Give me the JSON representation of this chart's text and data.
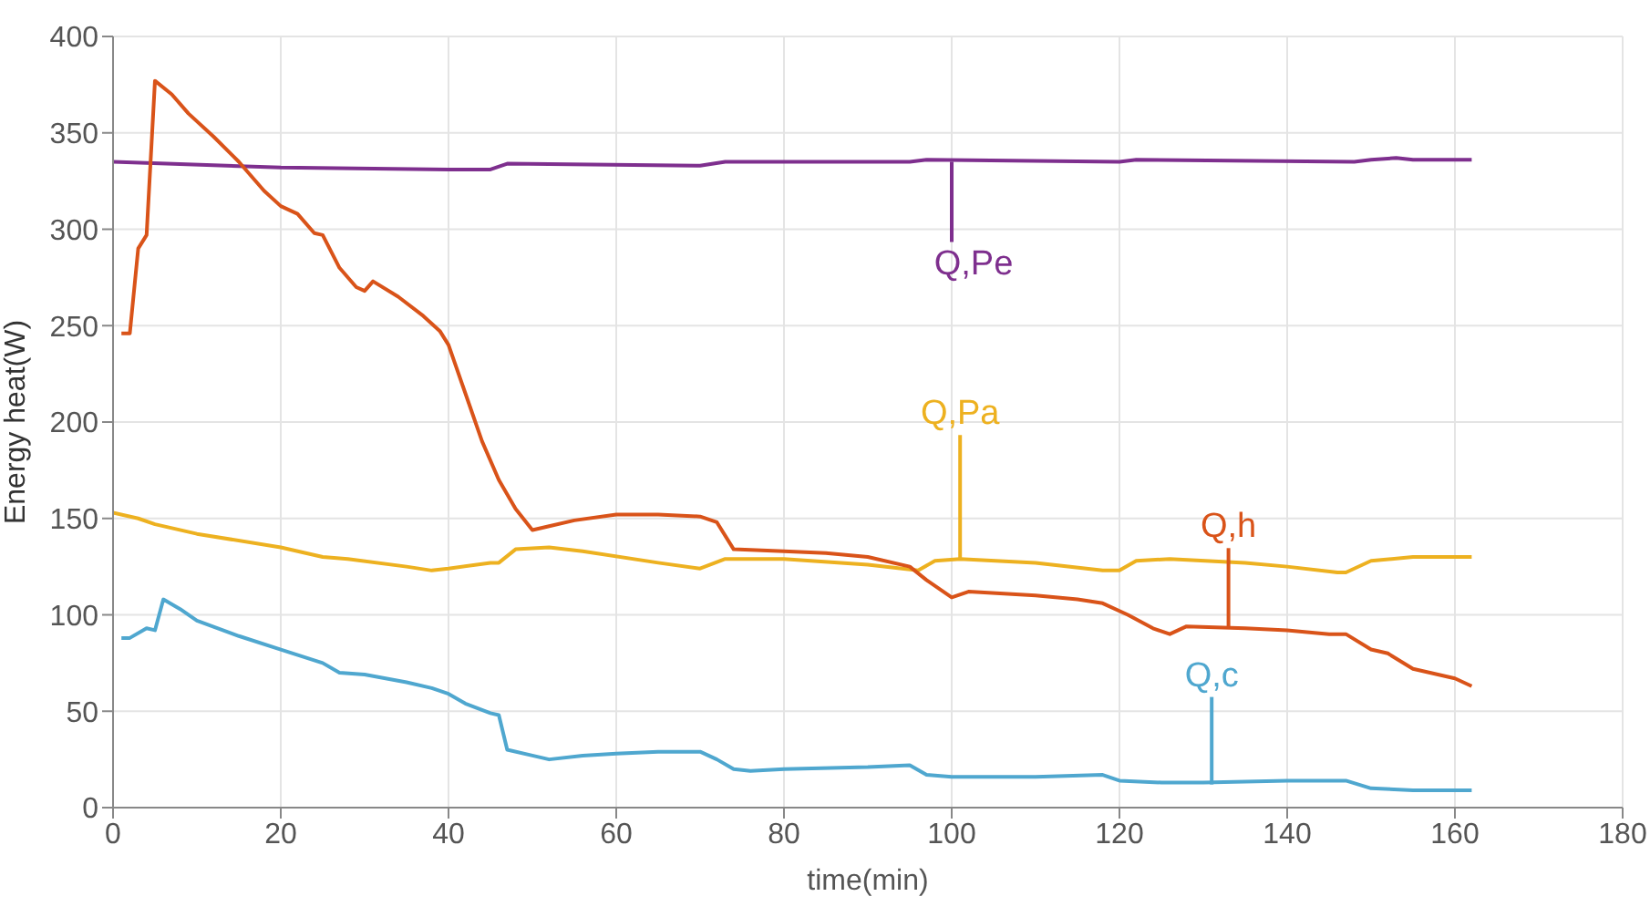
{
  "chart_data": {
    "type": "line",
    "xlabel": "time(min)",
    "ylabel": "Energy heat(W)",
    "xlim": [
      0,
      180
    ],
    "xticks": [
      0,
      20,
      40,
      60,
      80,
      100,
      120,
      140,
      160,
      180
    ],
    "ylim": [
      0,
      400
    ],
    "yticks": [
      0,
      50,
      100,
      150,
      200,
      250,
      300,
      350,
      400
    ],
    "grid": true,
    "marker": "none",
    "line_style": "solid",
    "series": [
      {
        "color": "#7e2f8e",
        "x": [
          0,
          20,
          40,
          45,
          47,
          70,
          73,
          95,
          97,
          120,
          122,
          148,
          150,
          153,
          155,
          162
        ],
        "values": [
          335,
          332,
          331,
          331,
          334,
          333,
          335,
          335,
          336,
          335,
          336,
          335,
          336,
          337,
          336,
          336
        ]
      },
      {
        "color": "#edb120",
        "x": [
          0,
          3,
          5,
          10,
          20,
          25,
          28,
          35,
          38,
          40,
          45,
          46,
          48,
          52,
          56,
          65,
          70,
          73,
          80,
          90,
          96,
          98,
          101,
          110,
          118,
          120,
          122,
          126,
          135,
          140,
          146,
          147,
          150,
          155,
          162
        ],
        "values": [
          153,
          150,
          147,
          142,
          135,
          130,
          129,
          125,
          123,
          124,
          127,
          127,
          134,
          135,
          133,
          127,
          124,
          129,
          129,
          126,
          123,
          128,
          129,
          127,
          123,
          123,
          128,
          129,
          127,
          125,
          122,
          122,
          128,
          130,
          130
        ]
      },
      {
        "color": "#d95319",
        "x": [
          1,
          2,
          3,
          4,
          5,
          7,
          9,
          12,
          15,
          18,
          20,
          22,
          24,
          25,
          27,
          29,
          30,
          31,
          34,
          37,
          39,
          40,
          42,
          44,
          46,
          48,
          50,
          52,
          55,
          60,
          65,
          70,
          72,
          74,
          80,
          85,
          90,
          95,
          97,
          100,
          102,
          110,
          115,
          118,
          121,
          124,
          126,
          128,
          135,
          140,
          145,
          147,
          150,
          152,
          155,
          160,
          162
        ],
        "values": [
          246,
          246,
          290,
          297,
          377,
          370,
          360,
          348,
          335,
          320,
          312,
          308,
          298,
          297,
          280,
          270,
          268,
          273,
          265,
          255,
          247,
          240,
          215,
          190,
          170,
          155,
          144,
          146,
          149,
          152,
          152,
          151,
          148,
          134,
          133,
          132,
          130,
          125,
          118,
          109,
          112,
          110,
          108,
          106,
          100,
          93,
          90,
          94,
          93,
          92,
          90,
          90,
          82,
          80,
          72,
          67,
          63
        ]
      },
      {
        "color": "#4fa7cf",
        "x": [
          1,
          2,
          4,
          5,
          6,
          8,
          10,
          15,
          20,
          25,
          27,
          30,
          35,
          38,
          40,
          42,
          45,
          46,
          47,
          50,
          52,
          56,
          60,
          65,
          70,
          72,
          74,
          76,
          80,
          90,
          95,
          97,
          100,
          110,
          118,
          120,
          125,
          130,
          140,
          147,
          150,
          155,
          162
        ],
        "values": [
          88,
          88,
          93,
          92,
          108,
          103,
          97,
          89,
          82,
          75,
          70,
          69,
          65,
          62,
          59,
          54,
          49,
          48,
          30,
          27,
          25,
          27,
          28,
          29,
          29,
          25,
          20,
          19,
          20,
          21,
          22,
          17,
          16,
          16,
          17,
          14,
          13,
          13,
          14,
          14,
          10,
          9,
          9
        ]
      }
    ],
    "annotations": [
      {
        "text": "Q,Pe",
        "x": 100,
        "y": 335
      },
      {
        "text": "Q,Pa",
        "x": 101,
        "y": 129
      },
      {
        "text": "Q,h",
        "x": 133,
        "y": 93
      },
      {
        "text": "Q,c",
        "x": 131,
        "y": 12
      }
    ]
  }
}
